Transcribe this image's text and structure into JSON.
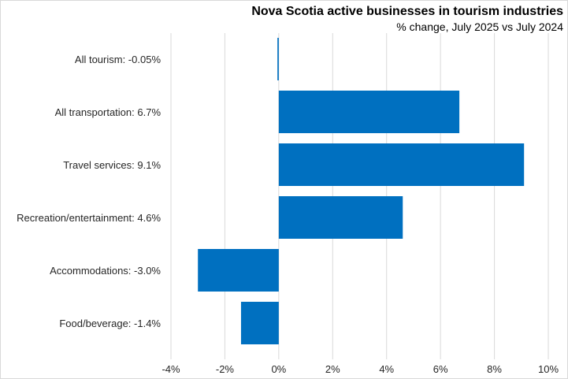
{
  "chart_data": {
    "type": "bar",
    "orientation": "horizontal",
    "title": "Nova Scotia active businesses in tourism industries",
    "subtitle": "% change, July 2025 vs July 2024",
    "categories": [
      "All tourism:  -0.05%",
      "All transportation:  6.7%",
      "Travel services:  9.1%",
      "Recreation/entertainment:  4.6%",
      "Accommodations:  -3.0%",
      "Food/beverage:  -1.4%"
    ],
    "values": [
      -0.05,
      6.7,
      9.1,
      4.6,
      -3.0,
      -1.4
    ],
    "xlim": [
      -4,
      10
    ],
    "xticks": [
      -4,
      -2,
      0,
      2,
      4,
      6,
      8,
      10
    ],
    "xtick_labels": [
      "-4%",
      "-2%",
      "0%",
      "2%",
      "4%",
      "6%",
      "8%",
      "10%"
    ],
    "xlabel": "",
    "ylabel": "",
    "grid": true,
    "bar_color": "#0070c0",
    "grid_color": "#d9d9d9"
  }
}
